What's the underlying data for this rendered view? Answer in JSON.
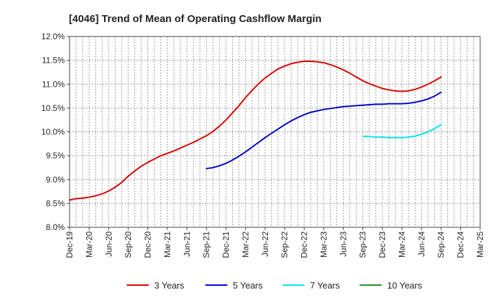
{
  "chart_data": {
    "type": "line",
    "title": "[4046]  Trend of Mean of Operating Cashflow Margin",
    "xlabel": "",
    "ylabel": "",
    "ylim": [
      8.0,
      12.0
    ],
    "y_ticks": [
      "8.0%",
      "8.5%",
      "9.0%",
      "9.5%",
      "10.0%",
      "10.5%",
      "11.0%",
      "11.5%",
      "12.0%"
    ],
    "y_tick_values": [
      8.0,
      8.5,
      9.0,
      9.5,
      10.0,
      10.5,
      11.0,
      11.5,
      12.0
    ],
    "x_ticks": [
      "Dec-19",
      "Mar-20",
      "Jun-20",
      "Sep-20",
      "Dec-20",
      "Mar-21",
      "Jun-21",
      "Sep-21",
      "Dec-21",
      "Mar-22",
      "Jun-22",
      "Sep-22",
      "Dec-22",
      "Mar-23",
      "Jun-23",
      "Sep-23",
      "Dec-23",
      "Mar-24",
      "Jun-24",
      "Sep-24",
      "Dec-24",
      "Mar-25"
    ],
    "x_tick_values": [
      "2019-12",
      "2020-03",
      "2020-06",
      "2020-09",
      "2020-12",
      "2021-03",
      "2021-06",
      "2021-09",
      "2021-12",
      "2022-03",
      "2022-06",
      "2022-09",
      "2022-12",
      "2023-03",
      "2023-06",
      "2023-09",
      "2023-12",
      "2024-03",
      "2024-06",
      "2024-09",
      "2024-12",
      "2025-03"
    ],
    "x_range": [
      "2019-12",
      "2025-03"
    ],
    "grid": true,
    "legend_position": "bottom",
    "series": [
      {
        "name": "3 Years",
        "color": "#dd0000",
        "points": [
          [
            "2019-12",
            8.57
          ],
          [
            "2020-01",
            8.6
          ],
          [
            "2020-02",
            8.61
          ],
          [
            "2020-03",
            8.63
          ],
          [
            "2020-04",
            8.66
          ],
          [
            "2020-05",
            8.7
          ],
          [
            "2020-06",
            8.76
          ],
          [
            "2020-07",
            8.84
          ],
          [
            "2020-08",
            8.94
          ],
          [
            "2020-09",
            9.07
          ],
          [
            "2020-10",
            9.18
          ],
          [
            "2020-11",
            9.28
          ],
          [
            "2020-12",
            9.36
          ],
          [
            "2021-01",
            9.43
          ],
          [
            "2021-02",
            9.5
          ],
          [
            "2021-03",
            9.55
          ],
          [
            "2021-04",
            9.6
          ],
          [
            "2021-05",
            9.66
          ],
          [
            "2021-06",
            9.72
          ],
          [
            "2021-07",
            9.78
          ],
          [
            "2021-08",
            9.85
          ],
          [
            "2021-09",
            9.92
          ],
          [
            "2021-10",
            10.01
          ],
          [
            "2021-11",
            10.12
          ],
          [
            "2021-12",
            10.25
          ],
          [
            "2022-01",
            10.4
          ],
          [
            "2022-02",
            10.55
          ],
          [
            "2022-03",
            10.72
          ],
          [
            "2022-04",
            10.87
          ],
          [
            "2022-05",
            11.01
          ],
          [
            "2022-06",
            11.13
          ],
          [
            "2022-07",
            11.23
          ],
          [
            "2022-08",
            11.32
          ],
          [
            "2022-09",
            11.38
          ],
          [
            "2022-10",
            11.43
          ],
          [
            "2022-11",
            11.46
          ],
          [
            "2022-12",
            11.48
          ],
          [
            "2023-01",
            11.48
          ],
          [
            "2023-02",
            11.47
          ],
          [
            "2023-03",
            11.45
          ],
          [
            "2023-04",
            11.41
          ],
          [
            "2023-05",
            11.36
          ],
          [
            "2023-06",
            11.3
          ],
          [
            "2023-07",
            11.23
          ],
          [
            "2023-08",
            11.15
          ],
          [
            "2023-09",
            11.07
          ],
          [
            "2023-10",
            11.01
          ],
          [
            "2023-11",
            10.96
          ],
          [
            "2023-12",
            10.91
          ],
          [
            "2024-01",
            10.88
          ],
          [
            "2024-02",
            10.86
          ],
          [
            "2024-03",
            10.85
          ],
          [
            "2024-04",
            10.86
          ],
          [
            "2024-05",
            10.89
          ],
          [
            "2024-06",
            10.94
          ],
          [
            "2024-07",
            11.0
          ],
          [
            "2024-08",
            11.07
          ],
          [
            "2024-09",
            11.15
          ]
        ]
      },
      {
        "name": "5 Years",
        "color": "#0000cc",
        "points": [
          [
            "2021-09",
            9.23
          ],
          [
            "2021-10",
            9.25
          ],
          [
            "2021-11",
            9.29
          ],
          [
            "2021-12",
            9.34
          ],
          [
            "2022-01",
            9.41
          ],
          [
            "2022-02",
            9.49
          ],
          [
            "2022-03",
            9.58
          ],
          [
            "2022-04",
            9.68
          ],
          [
            "2022-05",
            9.78
          ],
          [
            "2022-06",
            9.88
          ],
          [
            "2022-07",
            9.97
          ],
          [
            "2022-08",
            10.06
          ],
          [
            "2022-09",
            10.15
          ],
          [
            "2022-10",
            10.23
          ],
          [
            "2022-11",
            10.3
          ],
          [
            "2022-12",
            10.36
          ],
          [
            "2023-01",
            10.41
          ],
          [
            "2023-02",
            10.44
          ],
          [
            "2023-03",
            10.47
          ],
          [
            "2023-04",
            10.49
          ],
          [
            "2023-05",
            10.51
          ],
          [
            "2023-06",
            10.53
          ],
          [
            "2023-07",
            10.54
          ],
          [
            "2023-08",
            10.55
          ],
          [
            "2023-09",
            10.56
          ],
          [
            "2023-10",
            10.57
          ],
          [
            "2023-11",
            10.58
          ],
          [
            "2023-12",
            10.58
          ],
          [
            "2024-01",
            10.59
          ],
          [
            "2024-02",
            10.59
          ],
          [
            "2024-03",
            10.59
          ],
          [
            "2024-04",
            10.6
          ],
          [
            "2024-05",
            10.62
          ],
          [
            "2024-06",
            10.65
          ],
          [
            "2024-07",
            10.69
          ],
          [
            "2024-08",
            10.75
          ],
          [
            "2024-09",
            10.83
          ]
        ]
      },
      {
        "name": "7 Years",
        "color": "#00e5ee",
        "points": [
          [
            "2023-09",
            9.91
          ],
          [
            "2023-10",
            9.9
          ],
          [
            "2023-11",
            9.89
          ],
          [
            "2023-12",
            9.89
          ],
          [
            "2024-01",
            9.88
          ],
          [
            "2024-02",
            9.88
          ],
          [
            "2024-03",
            9.88
          ],
          [
            "2024-04",
            9.89
          ],
          [
            "2024-05",
            9.91
          ],
          [
            "2024-06",
            9.95
          ],
          [
            "2024-07",
            10.0
          ],
          [
            "2024-08",
            10.07
          ],
          [
            "2024-09",
            10.15
          ]
        ]
      },
      {
        "name": "10 Years",
        "color": "#228b22",
        "points": []
      }
    ]
  }
}
